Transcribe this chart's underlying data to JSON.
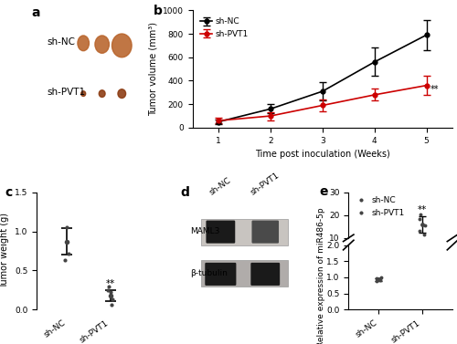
{
  "panel_b": {
    "weeks": [
      1,
      2,
      3,
      4,
      5
    ],
    "sh_NC_mean": [
      50,
      160,
      310,
      560,
      790
    ],
    "sh_NC_err": [
      20,
      40,
      80,
      120,
      130
    ],
    "sh_PVT1_mean": [
      60,
      100,
      190,
      280,
      360
    ],
    "sh_PVT1_err": [
      25,
      35,
      50,
      50,
      80
    ],
    "ylabel": "Tumor volume (mm³)",
    "xlabel": "Time post inoculation (Weeks)",
    "ylim": [
      0,
      1000
    ],
    "yticks": [
      0,
      200,
      400,
      600,
      800,
      1000
    ],
    "sh_NC_color": "#000000",
    "sh_PVT1_color": "#cc0000",
    "label_NC": "sh-NC",
    "label_PVT1": "sh-PVT1"
  },
  "panel_c": {
    "groups": [
      "sh-NC",
      "sh-PVT1"
    ],
    "sh_NC_mean": 0.87,
    "sh_NC_err": 0.17,
    "sh_NC_points": [
      0.63,
      0.72,
      1.05
    ],
    "sh_PVT1_mean": 0.18,
    "sh_PVT1_err": 0.07,
    "sh_PVT1_points": [
      0.06,
      0.13,
      0.18,
      0.22,
      0.25,
      0.3
    ],
    "ylabel": "Tumor weight (g)",
    "ylim": [
      0,
      1.5
    ],
    "yticks": [
      0.0,
      0.5,
      1.0,
      1.5
    ]
  },
  "panel_e": {
    "groups": [
      "sh-NC",
      "sh-PVT1"
    ],
    "sh_NC_mean": 0.93,
    "sh_NC_err": 0.04,
    "sh_NC_points": [
      0.88,
      0.91,
      0.93,
      0.95,
      0.97,
      0.99
    ],
    "sh_PVT1_mean": 16.0,
    "sh_PVT1_err": 3.5,
    "sh_PVT1_points": [
      11.5,
      13.0,
      15.5,
      18.5,
      20.5
    ],
    "ylabel": "Relative expression of miR486-5p",
    "ylim_lower": [
      0.0,
      2.0
    ],
    "ylim_upper": [
      10.0,
      30.0
    ],
    "yticks_lower": [
      0.0,
      0.5,
      1.0,
      1.5,
      2.0
    ],
    "yticks_upper": [
      10,
      20,
      30
    ]
  },
  "panel_a_label": "a",
  "panel_b_label": "b",
  "panel_c_label": "c",
  "panel_d_label": "d",
  "panel_e_label": "e",
  "label_fontsize": 10,
  "axis_fontsize": 7,
  "tick_fontsize": 6.5,
  "dot_color": "#444444",
  "bg_color": "#ffffff",
  "panel_a_bg": "#f5f2ee",
  "tumor_NC_color": "#b8632a",
  "tumor_PVT1_color": "#8b3a10",
  "wb_bg": "#c8c4c0",
  "wb_band_dark": "#1a1a1a",
  "wb_band_light": "#4a4a4a",
  "wb_bg2": "#b0acaa"
}
